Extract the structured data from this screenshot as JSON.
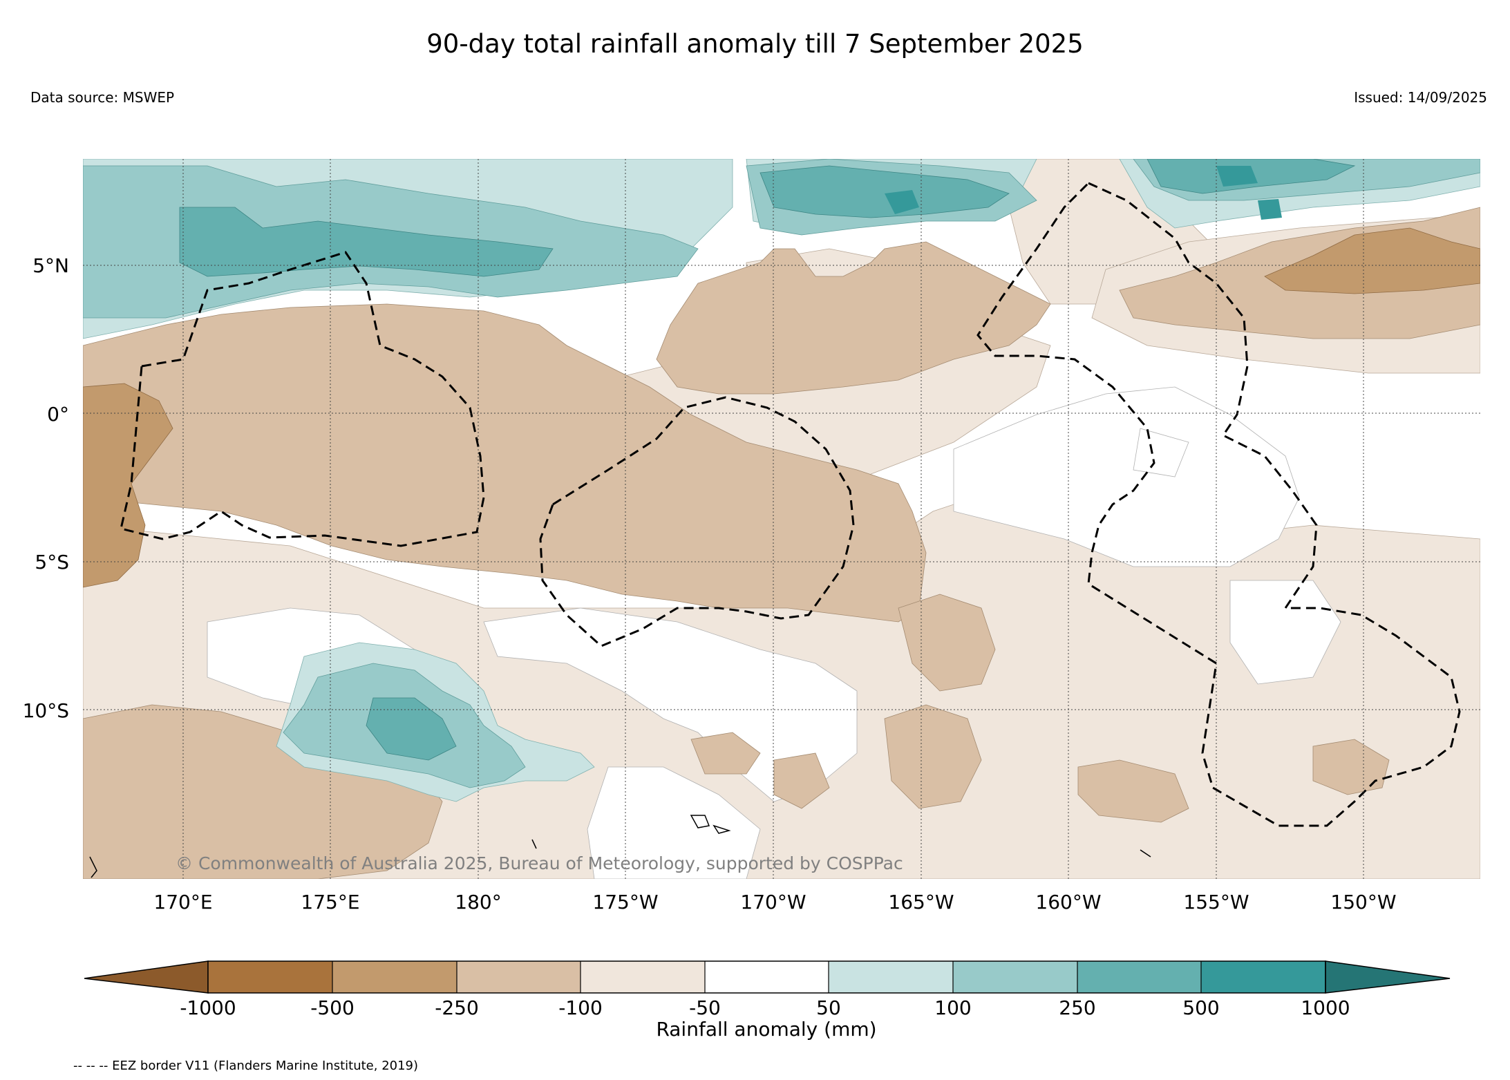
{
  "header": {
    "title": "90-day total rainfall anomaly till 7 September 2025",
    "data_source": "Data source: MSWEP",
    "issued": "Issued: 14/09/2025"
  },
  "map": {
    "lat_labels": [
      "5°N",
      "0°",
      "5°S",
      "10°S"
    ],
    "lon_labels": [
      "170°E",
      "175°E",
      "180°",
      "175°W",
      "170°W",
      "165°W",
      "160°W",
      "155°W",
      "150°W"
    ],
    "copyright": "© Commonwealth of Australia 2025, Bureau of Meteorology, supported by COSPPac",
    "colors": {
      "lt_-1000": "#8c5a2b",
      "-1000_-500": "#a9733c",
      "-500_-250": "#c29a6d",
      "-250_-100": "#d9bfa5",
      "-100_-50": "#f0e6dc",
      "-50_50": "#ffffff",
      "50_100": "#c9e3e2",
      "100_250": "#98cac9",
      "250_500": "#64b0af",
      "500_1000": "#35999a",
      "gt_1000": "#257575"
    }
  },
  "colorbar": {
    "ticks": [
      "-1000",
      "-500",
      "-250",
      "-100",
      "-50",
      "50",
      "100",
      "250",
      "500",
      "1000"
    ],
    "label": "Rainfall anomaly (mm)"
  },
  "footnote": "-- -- -- EEZ border V11 (Flanders Marine Institute, 2019)"
}
